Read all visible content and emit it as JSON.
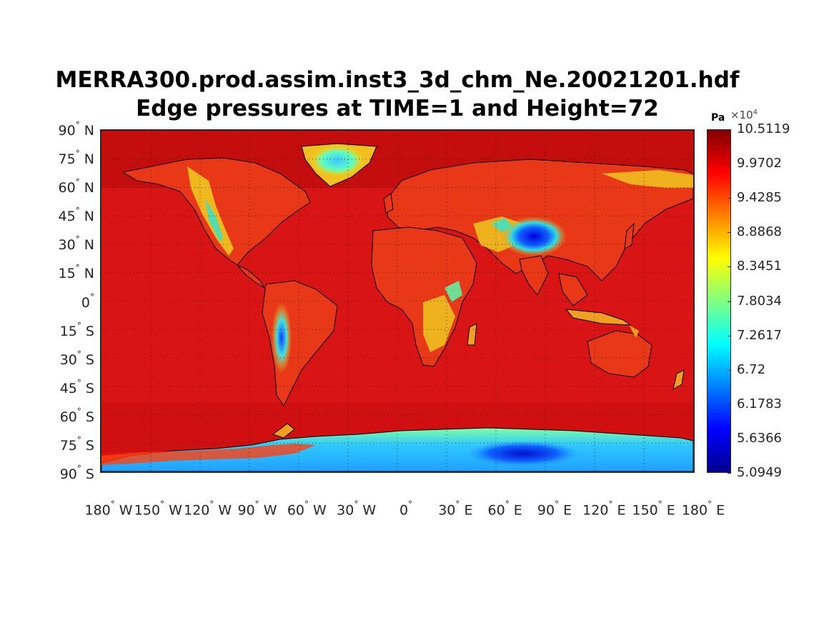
{
  "title": {
    "line1": "MERRA300.prod.assim.inst3_3d_chm_Ne.20021201.hdf",
    "line2": "Edge pressures at TIME=1 and Height=72"
  },
  "lat_labels": [
    {
      "lat": 90,
      "text": "90",
      "hemi": "N"
    },
    {
      "lat": 75,
      "text": "75",
      "hemi": "N"
    },
    {
      "lat": 60,
      "text": "60",
      "hemi": "N"
    },
    {
      "lat": 45,
      "text": "45",
      "hemi": "N"
    },
    {
      "lat": 30,
      "text": "30",
      "hemi": "N"
    },
    {
      "lat": 15,
      "text": "15",
      "hemi": "N"
    },
    {
      "lat": 0,
      "text": "0",
      "hemi": ""
    },
    {
      "lat": -15,
      "text": "15",
      "hemi": "S"
    },
    {
      "lat": -30,
      "text": "30",
      "hemi": "S"
    },
    {
      "lat": -45,
      "text": "45",
      "hemi": "S"
    },
    {
      "lat": -60,
      "text": "60",
      "hemi": "S"
    },
    {
      "lat": -75,
      "text": "75",
      "hemi": "S"
    },
    {
      "lat": -90,
      "text": "90",
      "hemi": "S"
    }
  ],
  "lon_labels": [
    {
      "lon": -180,
      "text": "180",
      "hemi": "W"
    },
    {
      "lon": -150,
      "text": "150",
      "hemi": "W"
    },
    {
      "lon": -120,
      "text": "120",
      "hemi": "W"
    },
    {
      "lon": -90,
      "text": "90",
      "hemi": "W"
    },
    {
      "lon": -60,
      "text": "60",
      "hemi": "W"
    },
    {
      "lon": -30,
      "text": "30",
      "hemi": "W"
    },
    {
      "lon": 0,
      "text": "0",
      "hemi": ""
    },
    {
      "lon": 30,
      "text": "30",
      "hemi": "E"
    },
    {
      "lon": 60,
      "text": "60",
      "hemi": "E"
    },
    {
      "lon": 90,
      "text": "90",
      "hemi": "E"
    },
    {
      "lon": 120,
      "text": "120",
      "hemi": "E"
    },
    {
      "lon": 150,
      "text": "150",
      "hemi": "E"
    },
    {
      "lon": 180,
      "text": "180",
      "hemi": "E"
    }
  ],
  "degree_symbol": "°",
  "colorbar": {
    "unit": "Pa",
    "multiplier": "×10",
    "exponent": "4",
    "colormap": "jet",
    "min": 5.0949,
    "max": 10.5119,
    "ticks": [
      "10.5119",
      "9.9702",
      "9.4285",
      "8.8868",
      "8.3451",
      "7.8034",
      "7.2617",
      "6.72",
      "6.1783",
      "5.6366",
      "5.0949"
    ]
  },
  "map": {
    "projection": "equirectangular",
    "lon_range": [
      -180,
      180
    ],
    "lat_range": [
      -90,
      90
    ],
    "grid": true,
    "ocean_color": "#d81414",
    "coastline_color": "#000000"
  }
}
